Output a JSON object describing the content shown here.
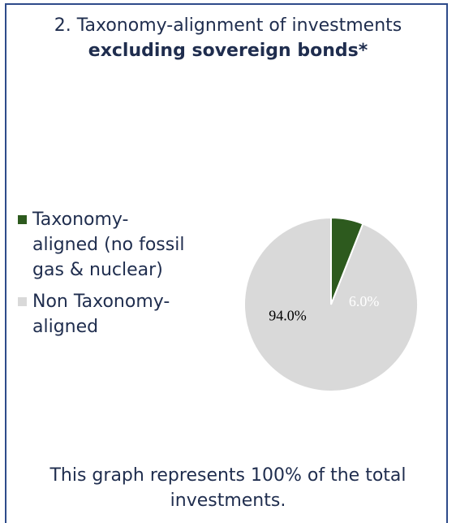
{
  "title": {
    "line1": "2. Taxonomy-alignment of investments",
    "line2": "excluding sovereign bonds*"
  },
  "legend": [
    {
      "label": "Taxonomy-aligned (no fossil gas & nuclear)",
      "color": "#2d5a1e"
    },
    {
      "label": "Non Taxonomy-aligned",
      "color": "#d9d9d9"
    }
  ],
  "chart_data": {
    "type": "pie",
    "slices": [
      {
        "label": "Taxonomy-aligned (no fossil gas & nuclear)",
        "value": 6.0,
        "display": "6.0%",
        "color": "#2d5a1e"
      },
      {
        "label": "Non Taxonomy-aligned",
        "value": 94.0,
        "display": "94.0%",
        "color": "#d9d9d9"
      }
    ],
    "legend_position": "left"
  },
  "footer": "This graph represents 100% of the total investments."
}
